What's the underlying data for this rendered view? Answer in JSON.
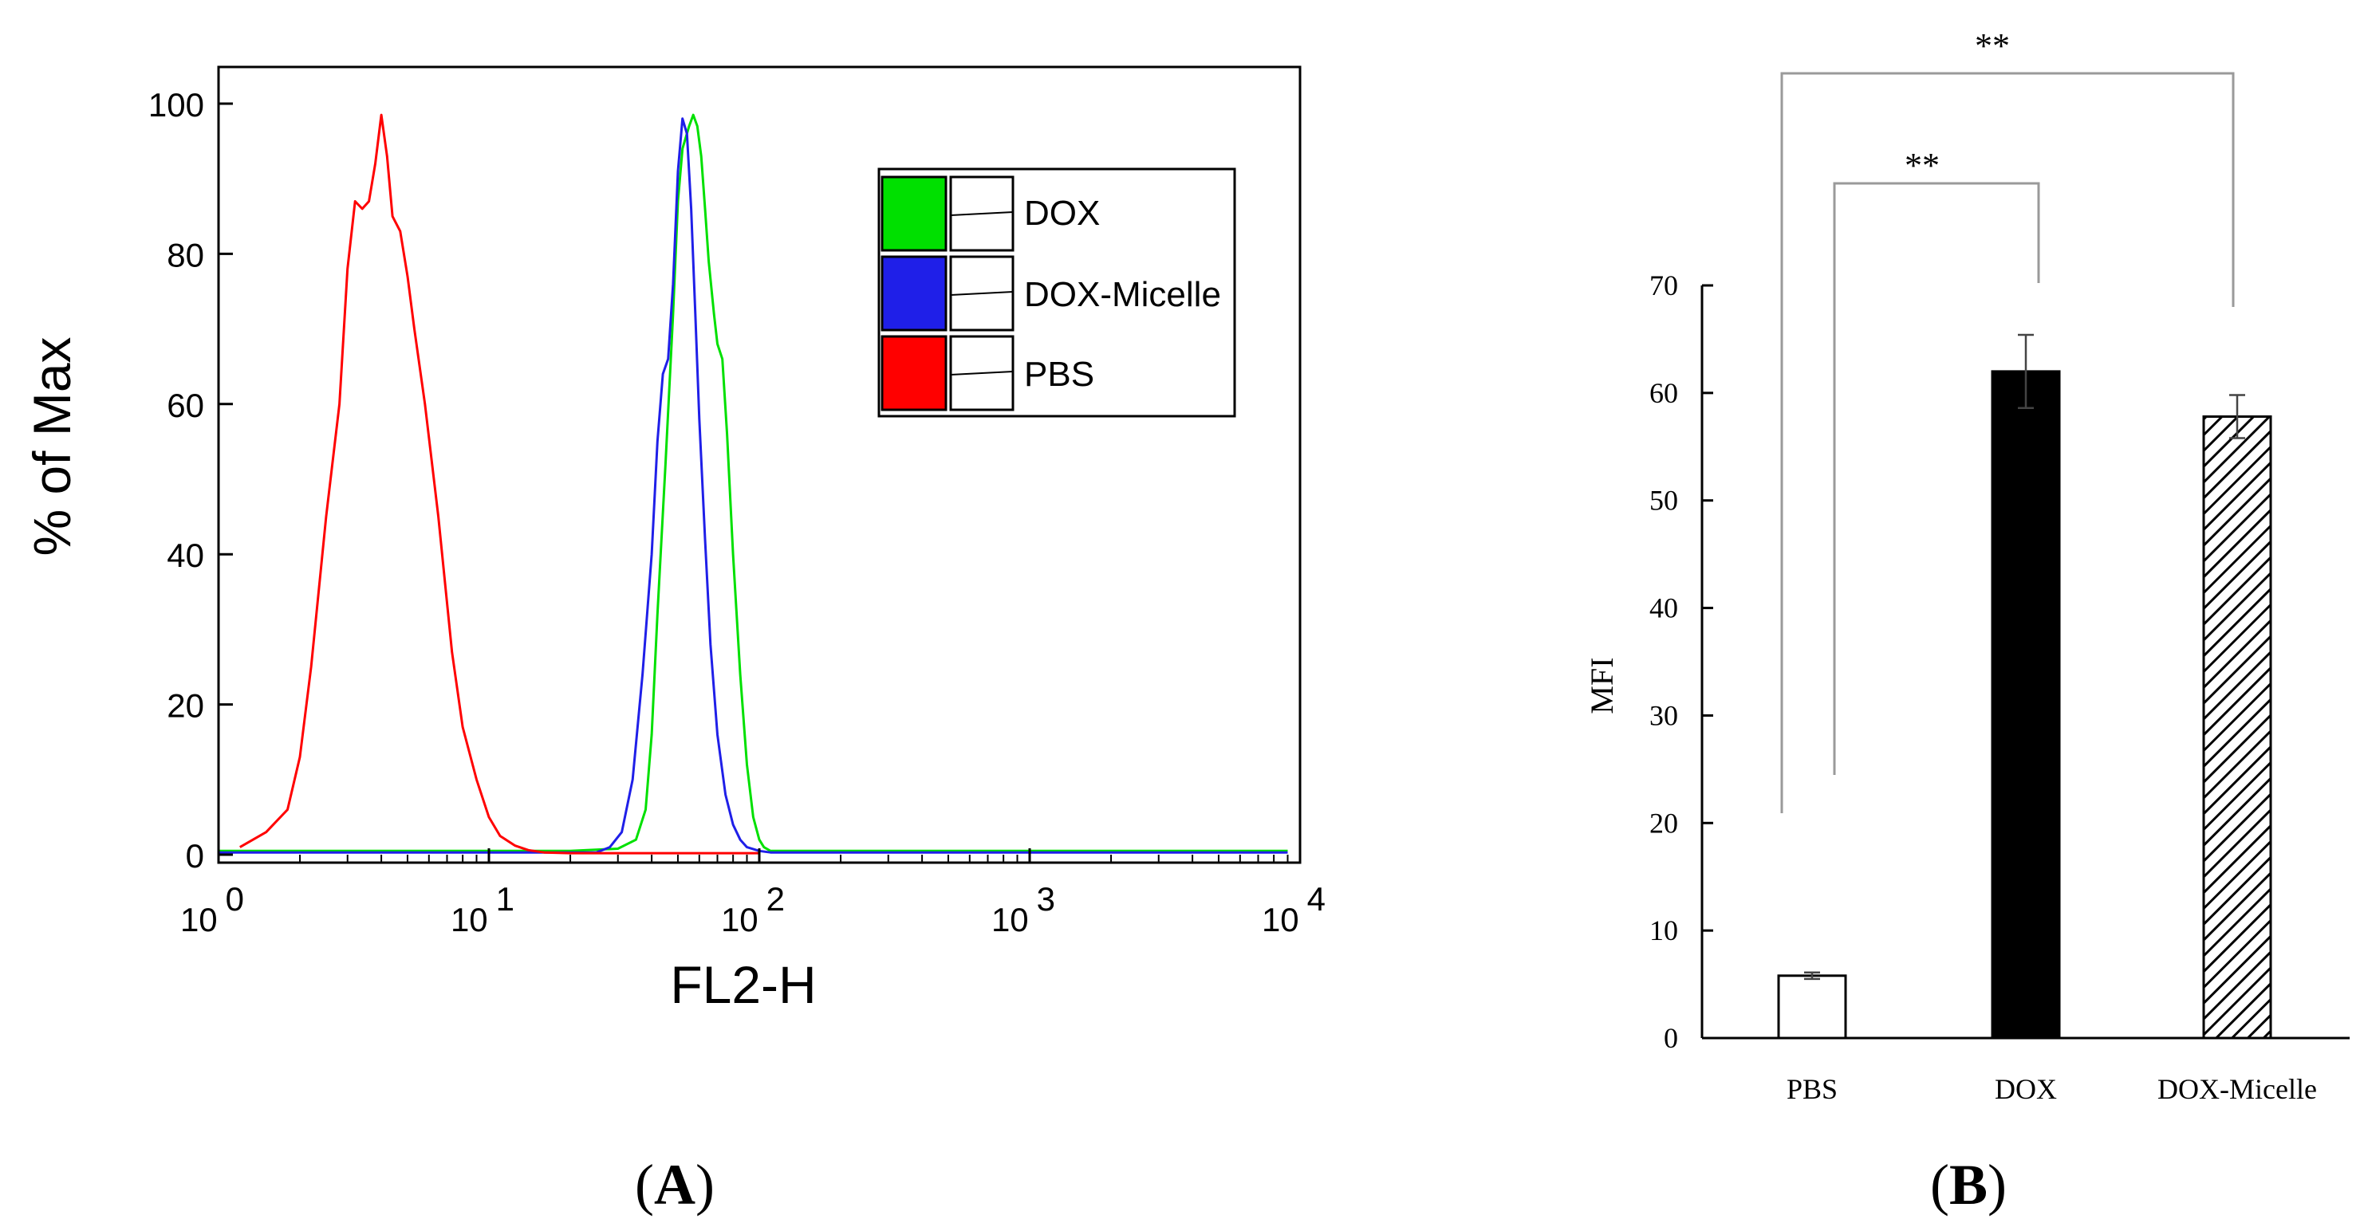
{
  "panel_a": {
    "panel_label": "A",
    "chart_data": {
      "type": "line",
      "title": "",
      "xlabel": "FL2-H",
      "ylabel": "% of Max",
      "xscale": "log10",
      "xlim": [
        1,
        10000
      ],
      "ylim": [
        0,
        100
      ],
      "yticks": [
        "0",
        "20",
        "40",
        "60",
        "80",
        "100"
      ],
      "xticks": [
        {
          "base": "10",
          "exp": "0",
          "value": 1
        },
        {
          "base": "10",
          "exp": "1",
          "value": 10
        },
        {
          "base": "10",
          "exp": "2",
          "value": 100
        },
        {
          "base": "10",
          "exp": "3",
          "value": 1000
        },
        {
          "base": "10",
          "exp": "4",
          "value": 10000
        }
      ],
      "legend": "top-right",
      "series": [
        {
          "name": "DOX",
          "color": "#00e000",
          "x": [
            1,
            20,
            30,
            35,
            38,
            40,
            42,
            45,
            48,
            50,
            52,
            55,
            57,
            59,
            61,
            63,
            65,
            68,
            70,
            73,
            76,
            80,
            85,
            90,
            95,
            100,
            104,
            110,
            120,
            200,
            1000,
            9000
          ],
          "y": [
            0.5,
            0.5,
            0.8,
            2,
            6,
            16,
            32,
            52,
            72,
            87,
            94,
            97,
            98.5,
            97,
            93,
            86,
            79,
            72,
            68,
            66,
            56,
            40,
            24,
            12,
            5,
            2,
            1,
            0.5,
            0.5,
            0.5,
            0.5,
            0.5
          ]
        },
        {
          "name": "DOX-Micelle",
          "color": "#1f1fe8",
          "x": [
            1,
            25,
            28,
            31,
            34,
            37,
            40,
            42,
            44,
            46,
            48,
            50,
            52,
            54,
            56,
            58,
            60,
            63,
            66,
            70,
            75,
            80,
            85,
            90,
            100,
            110,
            200,
            9000
          ],
          "y": [
            0.3,
            0.3,
            1,
            3,
            10,
            24,
            40,
            55,
            64,
            66,
            76,
            91,
            98,
            96,
            86,
            72,
            58,
            42,
            28,
            16,
            8,
            4,
            2,
            1,
            0.5,
            0.3,
            0.3,
            0.3
          ]
        },
        {
          "name": "PBS",
          "color": "#ff0000",
          "x": [
            1.2,
            1.5,
            1.8,
            2.0,
            2.2,
            2.5,
            2.8,
            3.0,
            3.2,
            3.4,
            3.6,
            3.8,
            4.0,
            4.2,
            4.4,
            4.7,
            5.0,
            5.3,
            5.8,
            6.5,
            7.3,
            8.0,
            9.0,
            10,
            11,
            12.5,
            14,
            16,
            20,
            25,
            40,
            100
          ],
          "y": [
            1,
            3,
            6,
            13,
            25,
            45,
            60,
            78,
            87,
            86,
            87,
            92,
            98.5,
            93,
            85,
            83,
            77,
            70,
            60,
            45,
            27,
            17,
            10,
            5,
            2.5,
            1.2,
            0.6,
            0.3,
            0.2,
            0.2,
            0.2,
            0.2
          ]
        }
      ]
    }
  },
  "panel_b": {
    "panel_label": "B",
    "chart_data": {
      "type": "bar",
      "title": "",
      "xlabel": "",
      "ylabel": "MFI",
      "ylim": [
        0,
        70
      ],
      "yticks": [
        "0",
        "10",
        "20",
        "30",
        "40",
        "50",
        "60",
        "70"
      ],
      "categories": [
        "PBS",
        "DOX",
        "DOX-Micelle"
      ],
      "values": [
        5.8,
        62,
        57.8
      ],
      "errors": [
        0.3,
        3.4,
        2
      ],
      "fills": [
        "white",
        "black",
        "hatched"
      ],
      "significance": [
        {
          "from": "PBS",
          "to": "DOX",
          "label": "**"
        },
        {
          "from": "PBS",
          "to": "DOX-Micelle",
          "label": "**"
        }
      ]
    }
  }
}
